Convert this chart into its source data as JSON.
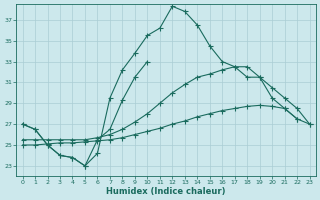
{
  "bg_color": "#cce8ec",
  "grid_color": "#aacdd4",
  "line_color": "#1a6b5e",
  "xlabel": "Humidex (Indice chaleur)",
  "xlim": [
    -0.5,
    23.5
  ],
  "ylim": [
    22.0,
    38.5
  ],
  "xticks": [
    0,
    1,
    2,
    3,
    4,
    5,
    6,
    7,
    8,
    9,
    10,
    11,
    12,
    13,
    14,
    15,
    16,
    17,
    18,
    19,
    20,
    21,
    22,
    23
  ],
  "yticks": [
    23,
    25,
    27,
    29,
    31,
    33,
    35,
    37
  ],
  "s1_x": [
    0,
    1,
    2,
    3,
    4,
    5,
    6,
    7,
    8,
    9,
    10,
    11,
    12,
    13,
    14,
    15,
    16,
    17,
    18,
    19,
    20,
    21,
    22
  ],
  "s1_y": [
    27.0,
    26.5,
    25.0,
    24.0,
    23.8,
    23.0,
    24.2,
    29.5,
    32.2,
    33.8,
    35.5,
    36.2,
    38.3,
    37.8,
    36.5,
    34.5,
    33.0,
    32.5,
    31.5,
    31.5,
    29.5,
    28.5,
    27.5
  ],
  "s2_x": [
    0,
    1,
    2,
    3,
    4,
    5,
    6,
    7,
    8,
    9,
    10
  ],
  "s2_y": [
    27.0,
    26.5,
    25.0,
    24.0,
    23.8,
    23.0,
    25.5,
    26.5,
    29.3,
    31.5,
    33.0
  ],
  "s3_x": [
    0,
    1,
    2,
    3,
    4,
    5,
    6,
    7,
    8,
    9,
    10,
    11,
    12,
    13,
    14,
    15,
    16,
    17,
    18,
    19,
    20,
    21,
    22,
    23
  ],
  "s3_y": [
    25.5,
    25.5,
    25.5,
    25.5,
    25.5,
    25.5,
    25.7,
    26.0,
    26.5,
    27.2,
    28.0,
    29.0,
    30.0,
    30.8,
    31.5,
    31.8,
    32.2,
    32.5,
    32.5,
    31.5,
    30.5,
    29.5,
    28.5,
    27.0
  ],
  "s4_x": [
    0,
    1,
    2,
    3,
    4,
    5,
    6,
    7,
    8,
    9,
    10,
    11,
    12,
    13,
    14,
    15,
    16,
    17,
    18,
    19,
    20,
    21,
    22,
    23
  ],
  "s4_y": [
    25.0,
    25.0,
    25.1,
    25.2,
    25.2,
    25.3,
    25.4,
    25.5,
    25.7,
    26.0,
    26.3,
    26.6,
    27.0,
    27.3,
    27.7,
    28.0,
    28.3,
    28.5,
    28.7,
    28.8,
    28.7,
    28.5,
    27.5,
    27.0
  ]
}
